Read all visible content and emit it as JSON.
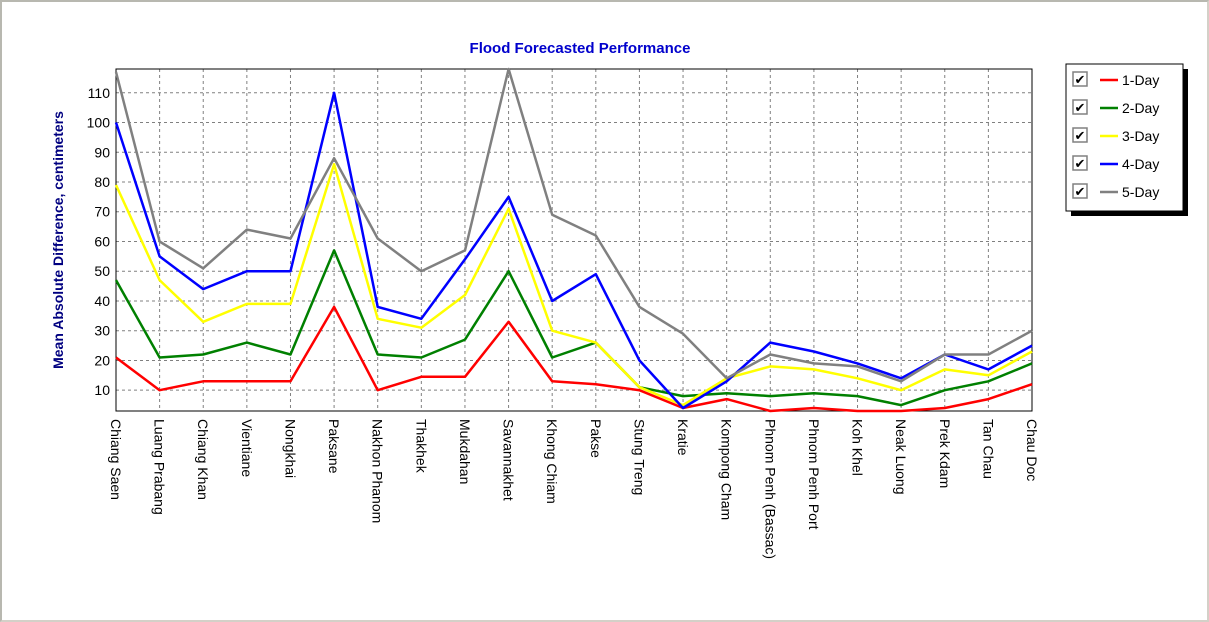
{
  "chart_data": {
    "type": "line",
    "title": "Flood Forecasted Performance",
    "xlabel": "",
    "ylabel": "Mean Absolute Difference, centimeters",
    "ylim": [
      3,
      118
    ],
    "yticks": [
      10,
      20,
      30,
      40,
      50,
      60,
      70,
      80,
      90,
      100,
      110
    ],
    "grid": true,
    "legend_position": "right",
    "categories": [
      "Chiang Saen",
      "Luang Prabang",
      "Chiang Khan",
      "Vientiane",
      "Nongkhai",
      "Paksane",
      "Nakhon Phanom",
      "Thakhek",
      "Mukdahan",
      "Savannakhet",
      "Khong Chiam",
      "Pakse",
      "Stung Treng",
      "Kratie",
      "Kompong Cham",
      "Phnom Penh (Bassac)",
      "Phnom Penh Port",
      "Koh Khel",
      "Neak Luong",
      "Prek Kdam",
      "Tan Chau",
      "Chau Doc"
    ],
    "series": [
      {
        "name": "1-Day",
        "color": "#ff0000",
        "values": [
          21,
          10,
          13,
          13,
          13,
          38,
          10,
          14.5,
          14.5,
          33,
          13,
          12,
          10,
          4,
          7,
          3,
          4,
          3,
          3,
          4,
          7,
          12
        ]
      },
      {
        "name": "2-Day",
        "color": "#008000",
        "values": [
          47,
          21,
          22,
          26,
          22,
          57,
          22,
          21,
          27,
          50,
          21,
          26,
          11,
          8,
          9,
          8,
          9,
          8,
          5,
          10,
          13,
          19
        ]
      },
      {
        "name": "3-Day",
        "color": "#ffff00",
        "values": [
          79,
          47,
          33,
          39,
          39,
          86,
          34,
          31,
          42,
          71,
          30,
          26,
          11,
          5,
          14,
          18,
          17,
          14,
          10,
          17,
          15,
          23
        ]
      },
      {
        "name": "4-Day",
        "color": "#0000ff",
        "values": [
          100,
          55,
          44,
          50,
          50,
          110,
          38,
          34,
          54,
          75,
          40,
          49,
          20,
          4,
          13,
          26,
          23,
          19,
          14,
          22,
          17,
          25
        ]
      },
      {
        "name": "5-Day",
        "color": "#808080",
        "values": [
          117,
          60,
          51,
          64,
          61,
          88,
          61,
          50,
          57,
          118,
          69,
          62,
          38,
          29,
          14,
          22,
          19,
          18,
          13,
          22,
          22,
          30
        ]
      }
    ]
  },
  "legend": {
    "items": [
      {
        "label": "1-Day",
        "checked": true
      },
      {
        "label": "2-Day",
        "checked": true
      },
      {
        "label": "3-Day",
        "checked": true
      },
      {
        "label": "4-Day",
        "checked": true
      },
      {
        "label": "5-Day",
        "checked": true
      }
    ],
    "check_glyph": "✔"
  }
}
